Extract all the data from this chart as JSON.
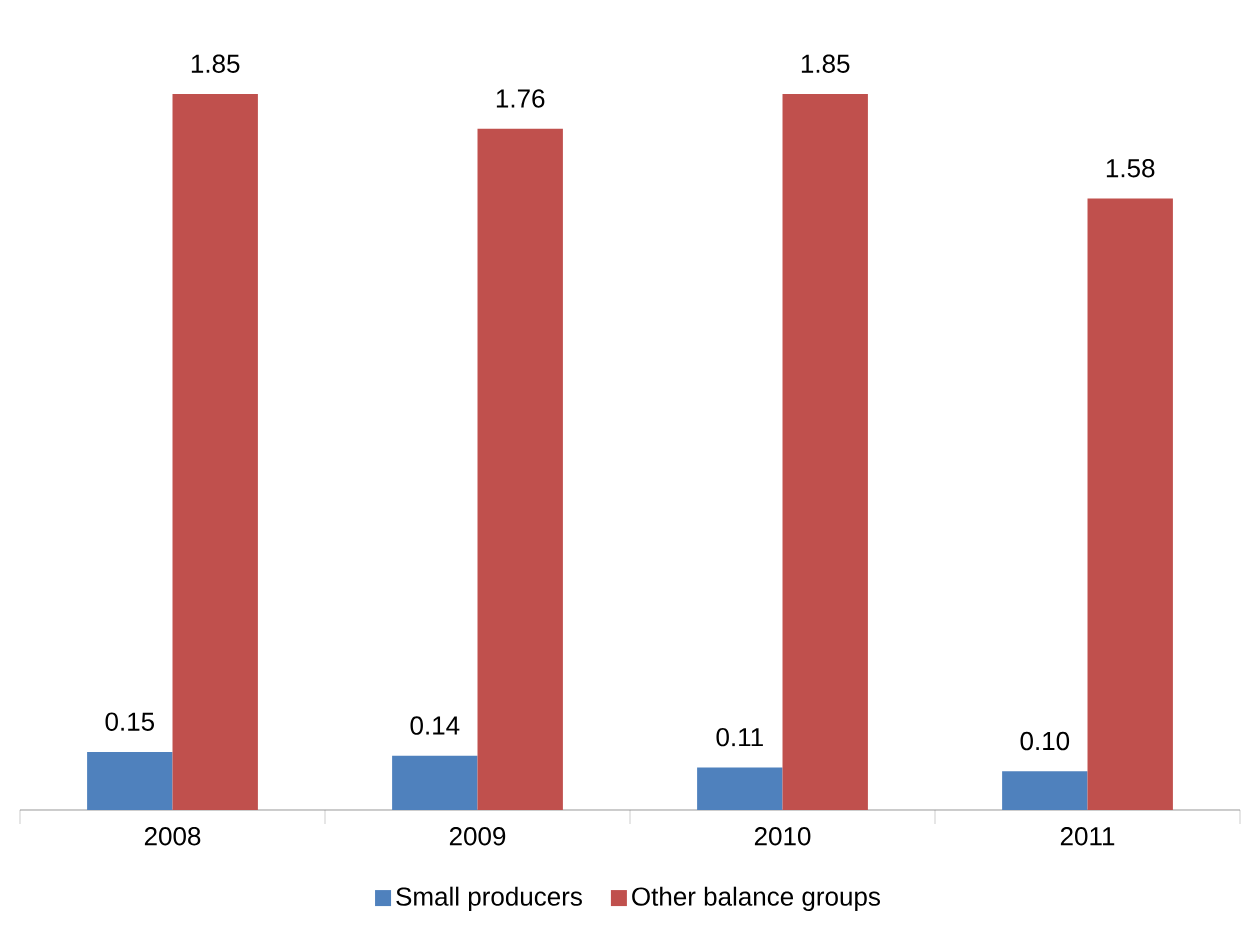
{
  "chart_data": {
    "type": "bar",
    "categories": [
      "2008",
      "2009",
      "2010",
      "2011"
    ],
    "series": [
      {
        "name": "Small producers",
        "color": "#4f81bd",
        "values": [
          0.15,
          0.14,
          0.11,
          0.1
        ],
        "value_labels": [
          "0.15",
          "0.14",
          "0.11",
          "0.10"
        ]
      },
      {
        "name": "Other balance groups",
        "color": "#c0504d",
        "values": [
          1.85,
          1.76,
          1.85,
          1.58
        ],
        "value_labels": [
          "1.85",
          "1.76",
          "1.85",
          "1.58"
        ]
      }
    ],
    "legend": "bottom"
  }
}
